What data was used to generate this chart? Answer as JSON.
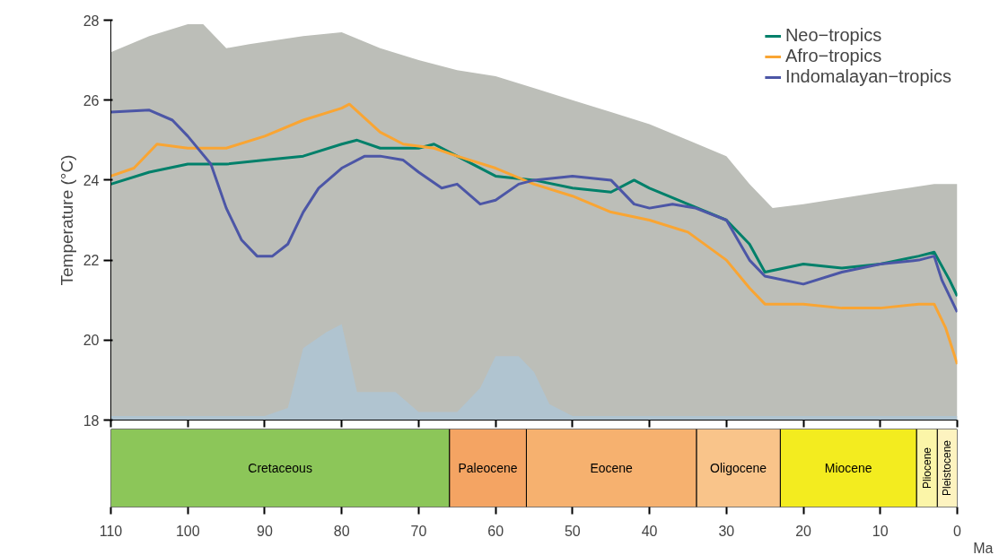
{
  "chart_data": [
    {
      "type": "line",
      "ylabel": "Temperature (°C)",
      "xlim": [
        110,
        0
      ],
      "ylim": [
        18,
        28
      ],
      "xticks": [
        110,
        100,
        90,
        80,
        70,
        60,
        50,
        40,
        30,
        20,
        10,
        0
      ],
      "yticks": [
        18,
        20,
        22,
        24,
        26,
        28
      ],
      "tick_labels": "y",
      "grid": false,
      "legend": "top right",
      "line_style": "solid",
      "marker": "none",
      "series": [
        {
          "type": "area",
          "color": "#bcbeb8",
          "x": [
            110,
            105,
            100,
            98,
            95,
            92,
            85,
            80,
            75,
            70,
            65,
            60,
            55,
            50,
            45,
            40,
            35,
            30,
            27,
            24,
            20,
            10,
            3,
            0
          ],
          "values": [
            27.2,
            27.6,
            27.9,
            27.9,
            27.3,
            27.4,
            27.6,
            27.7,
            27.3,
            27.0,
            26.75,
            26.6,
            26.3,
            26.0,
            25.7,
            25.4,
            25.0,
            24.6,
            23.9,
            23.3,
            23.4,
            23.7,
            23.9,
            23.9
          ]
        },
        {
          "type": "area",
          "color": "#b0c4d0",
          "x": [
            110,
            90,
            87,
            85,
            82,
            80,
            78,
            73,
            70,
            65,
            62,
            60,
            57,
            55,
            53,
            50,
            0
          ],
          "values": [
            18.1,
            18.1,
            18.3,
            19.8,
            20.2,
            20.4,
            18.7,
            18.7,
            18.2,
            18.2,
            18.8,
            19.6,
            19.6,
            19.2,
            18.4,
            18.1,
            18.1
          ]
        },
        {
          "name": "Neo−tropics",
          "color": "#00806a",
          "x": [
            110,
            105,
            100,
            95,
            90,
            85,
            80,
            78,
            75,
            70,
            68,
            65,
            60,
            55,
            50,
            45,
            42,
            40,
            35,
            30,
            27,
            25,
            20,
            15,
            10,
            5,
            3,
            1,
            0
          ],
          "values": [
            23.9,
            24.2,
            24.4,
            24.4,
            24.5,
            24.6,
            24.9,
            25.0,
            24.8,
            24.8,
            24.9,
            24.6,
            24.1,
            24.0,
            23.8,
            23.7,
            24.0,
            23.8,
            23.4,
            23.0,
            22.4,
            21.7,
            21.9,
            21.8,
            21.9,
            22.1,
            22.2,
            21.5,
            21.1
          ]
        },
        {
          "name": "Afro−tropics",
          "color": "#f9a533",
          "x": [
            110,
            107,
            104,
            100,
            95,
            90,
            85,
            80,
            79,
            75,
            72,
            68,
            65,
            60,
            55,
            50,
            45,
            40,
            35,
            30,
            27,
            25,
            20,
            15,
            10,
            5,
            3,
            1.5,
            0
          ],
          "values": [
            24.1,
            24.3,
            24.9,
            24.8,
            24.8,
            25.1,
            25.5,
            25.8,
            25.9,
            25.2,
            24.9,
            24.8,
            24.6,
            24.3,
            23.9,
            23.6,
            23.2,
            23.0,
            22.7,
            22.0,
            21.3,
            20.9,
            20.9,
            20.8,
            20.8,
            20.9,
            20.9,
            20.3,
            19.4
          ]
        },
        {
          "name": "Indomalayan−tropics",
          "color": "#4c56a6",
          "x": [
            110,
            105,
            102,
            100,
            97,
            95,
            93,
            91,
            89,
            87,
            85,
            83,
            80,
            77,
            75,
            72,
            70,
            67,
            65,
            62,
            60,
            57,
            55,
            50,
            45,
            42,
            40,
            37,
            34,
            30,
            27,
            25,
            20,
            15,
            10,
            5,
            3,
            2,
            0
          ],
          "values": [
            25.7,
            25.75,
            25.5,
            25.1,
            24.4,
            23.3,
            22.5,
            22.1,
            22.1,
            22.4,
            23.2,
            23.8,
            24.3,
            24.6,
            24.6,
            24.5,
            24.2,
            23.8,
            23.9,
            23.4,
            23.5,
            23.9,
            24.0,
            24.1,
            24.0,
            23.4,
            23.3,
            23.4,
            23.3,
            23.0,
            22.0,
            21.6,
            21.4,
            21.7,
            21.9,
            22.0,
            22.1,
            21.5,
            20.7
          ]
        }
      ]
    },
    {
      "type": "bar",
      "orientation": "horizontal",
      "stacked": true,
      "xlabel": "Ma",
      "xlim": [
        110,
        0
      ],
      "xticks": [
        110,
        100,
        90,
        80,
        70,
        60,
        50,
        40,
        30,
        20,
        10,
        0
      ],
      "tick_labels": "x",
      "categories": [
        null
      ],
      "series": [
        {
          "name": "Pleistocene",
          "color": "#fdf3c0",
          "values": [
            2.6
          ]
        },
        {
          "name": "Pliocene",
          "color": "#fbf5a8",
          "values": [
            2.7
          ]
        },
        {
          "name": "Miocene",
          "color": "#f3ec1f",
          "values": [
            17.7
          ]
        },
        {
          "name": "Oligocene",
          "color": "#f9c48a",
          "values": [
            10.9
          ]
        },
        {
          "name": "Eocene",
          "color": "#f6b16f",
          "values": [
            22.1
          ]
        },
        {
          "name": "Paleocene",
          "color": "#f4a463",
          "values": [
            10
          ]
        },
        {
          "name": "Cretaceous",
          "color": "#8cc659",
          "values": [
            44
          ]
        }
      ]
    }
  ]
}
